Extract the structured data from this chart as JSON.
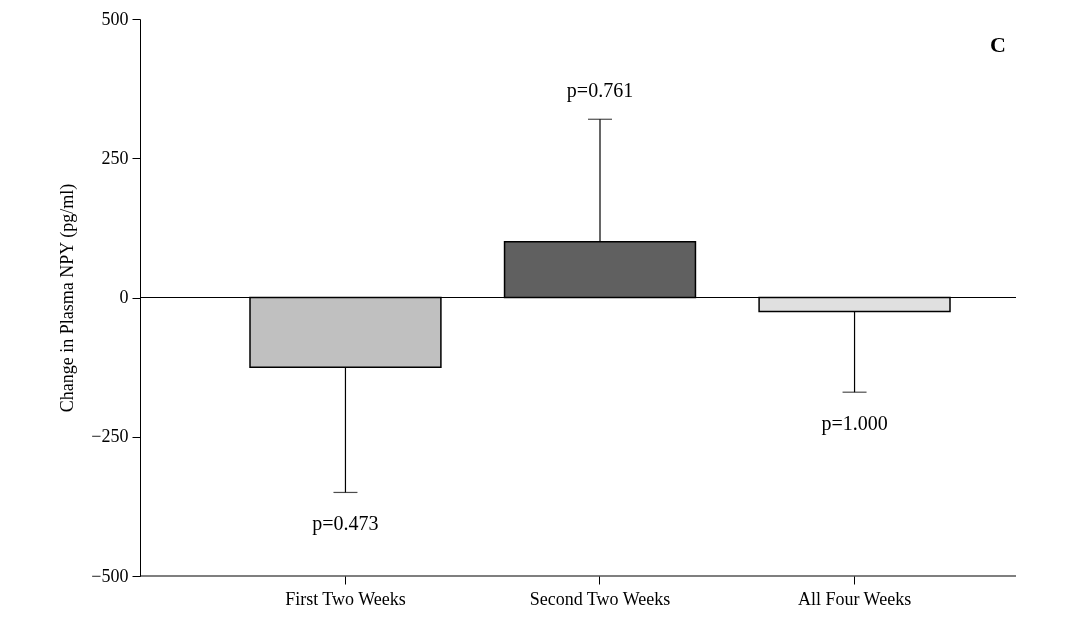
{
  "chart_data": {
    "type": "bar",
    "ylabel": "Change in Plasma NPY (pg/ml)",
    "categories": [
      "First Two Weeks",
      "Second Two Weeks",
      "All Four Weeks"
    ],
    "values": [
      -125,
      100,
      -25
    ],
    "colors": [
      "#c0c0c0",
      "#606060",
      "#e0e0e0"
    ],
    "errors": [
      [
        -350,
        -125
      ],
      [
        100,
        320
      ],
      [
        -170,
        -25
      ]
    ],
    "ylim": [
      -500,
      500
    ],
    "yticks": [
      -500,
      -250,
      0,
      250,
      500
    ],
    "grid": false,
    "ref_lines": [
      {
        "axis": "y",
        "value": 0
      }
    ],
    "annotations": [
      "p=0.473",
      "p=0.761",
      "p=1.000",
      "C"
    ]
  }
}
